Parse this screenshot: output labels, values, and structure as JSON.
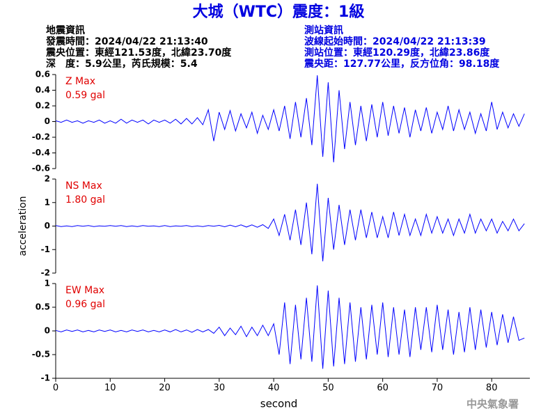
{
  "header": {
    "title": "大城（WTC）震度：1級",
    "quake_info": [
      "地震資訊",
      "發震時間：2024/04/22 21:13:40",
      "震央位置：東經121.53度，北緯23.70度",
      "深　度：5.9公里，芮氏規模：5.4"
    ],
    "station_info": [
      "測站資訊",
      "波線起始時間：2024/04/22 21:13:39",
      "測站位置：東經120.29度，北緯23.86度",
      "震央距：127.77公里，反方位角：98.18度"
    ],
    "footer": "中央氣象署"
  },
  "chart_data": [
    {
      "type": "line",
      "annotations": [
        "Z Max",
        "0.59 gal"
      ],
      "color": "#0000ff",
      "xlim": [
        0,
        87
      ],
      "ylim": [
        -0.6,
        0.6
      ],
      "yticks": [
        0.6,
        0.4,
        0.2,
        0,
        -0.2,
        -0.4,
        -0.6
      ],
      "x": [
        0,
        1,
        2,
        3,
        4,
        5,
        6,
        7,
        8,
        9,
        10,
        11,
        12,
        13,
        14,
        15,
        16,
        17,
        18,
        19,
        20,
        21,
        22,
        23,
        24,
        25,
        26,
        27,
        28,
        29,
        30,
        31,
        32,
        33,
        34,
        35,
        36,
        37,
        38,
        39,
        40,
        41,
        42,
        43,
        44,
        45,
        46,
        47,
        48,
        49,
        50,
        51,
        52,
        53,
        54,
        55,
        56,
        57,
        58,
        59,
        60,
        61,
        62,
        63,
        64,
        65,
        66,
        67,
        68,
        69,
        70,
        71,
        72,
        73,
        74,
        75,
        76,
        77,
        78,
        79,
        80,
        81,
        82,
        83,
        84,
        85,
        86
      ],
      "values": [
        0.01,
        -0.01,
        0.02,
        -0.01,
        0.01,
        -0.02,
        0.01,
        -0.01,
        0.02,
        -0.02,
        0.01,
        -0.02,
        0.03,
        -0.02,
        0.02,
        -0.01,
        0.02,
        -0.03,
        0.02,
        -0.01,
        0.02,
        -0.02,
        0.03,
        -0.03,
        0.04,
        -0.03,
        0.05,
        -0.04,
        0.15,
        -0.25,
        0.12,
        -0.1,
        0.14,
        -0.12,
        0.1,
        -0.08,
        0.12,
        -0.15,
        0.08,
        -0.1,
        0.15,
        -0.12,
        0.2,
        -0.22,
        0.25,
        -0.2,
        0.3,
        -0.3,
        0.59,
        -0.45,
        0.5,
        -0.52,
        0.4,
        -0.35,
        0.25,
        -0.3,
        0.2,
        -0.25,
        0.22,
        -0.2,
        0.25,
        -0.18,
        0.2,
        -0.15,
        0.18,
        -0.2,
        0.15,
        -0.12,
        0.18,
        -0.15,
        0.12,
        -0.1,
        0.2,
        -0.12,
        0.15,
        -0.1,
        0.12,
        -0.15,
        0.1,
        -0.12,
        0.25,
        -0.1,
        0.12,
        -0.08,
        0.1,
        -0.06,
        0.1
      ]
    },
    {
      "type": "line",
      "annotations": [
        "NS Max",
        "1.80 gal"
      ],
      "ylabel": "acceleration",
      "color": "#0000ff",
      "xlim": [
        0,
        87
      ],
      "ylim": [
        -2,
        2
      ],
      "yticks": [
        2,
        1,
        0,
        -1,
        -2
      ],
      "x": [
        0,
        1,
        2,
        3,
        4,
        5,
        6,
        7,
        8,
        9,
        10,
        11,
        12,
        13,
        14,
        15,
        16,
        17,
        18,
        19,
        20,
        21,
        22,
        23,
        24,
        25,
        26,
        27,
        28,
        29,
        30,
        31,
        32,
        33,
        34,
        35,
        36,
        37,
        38,
        39,
        40,
        41,
        42,
        43,
        44,
        45,
        46,
        47,
        48,
        49,
        50,
        51,
        52,
        53,
        54,
        55,
        56,
        57,
        58,
        59,
        60,
        61,
        62,
        63,
        64,
        65,
        66,
        67,
        68,
        69,
        70,
        71,
        72,
        73,
        74,
        75,
        76,
        77,
        78,
        79,
        80,
        81,
        82,
        83,
        84,
        85,
        86
      ],
      "values": [
        0.02,
        -0.02,
        0.01,
        -0.02,
        0.02,
        -0.01,
        0.02,
        -0.02,
        0.01,
        -0.01,
        0.02,
        -0.01,
        0.02,
        -0.02,
        0.01,
        -0.02,
        0.02,
        -0.01,
        0.01,
        -0.02,
        0.02,
        -0.02,
        0.01,
        -0.01,
        0.02,
        -0.02,
        0.01,
        -0.02,
        0.02,
        -0.01,
        0.03,
        -0.03,
        0.04,
        -0.03,
        0.05,
        -0.04,
        0.05,
        -0.05,
        0.06,
        -0.1,
        0.3,
        -0.4,
        0.5,
        -0.6,
        0.7,
        -0.8,
        1.0,
        -1.2,
        1.8,
        -1.5,
        1.2,
        -1.0,
        0.9,
        -0.8,
        0.7,
        -0.6,
        0.7,
        -0.5,
        0.6,
        -0.5,
        0.4,
        -0.5,
        0.6,
        -0.4,
        0.5,
        -0.4,
        0.3,
        -0.4,
        0.5,
        -0.3,
        0.4,
        -0.3,
        0.3,
        -0.4,
        0.3,
        -0.3,
        0.5,
        -0.3,
        0.3,
        -0.2,
        0.3,
        -0.3,
        0.2,
        -0.2,
        0.3,
        -0.2,
        0.1
      ]
    },
    {
      "type": "line",
      "annotations": [
        "EW Max",
        "0.96 gal"
      ],
      "xlabel": "second",
      "color": "#0000ff",
      "xlim": [
        0,
        87
      ],
      "ylim": [
        -1,
        1
      ],
      "yticks": [
        1,
        0.5,
        0,
        -0.5,
        -1
      ],
      "xticks": [
        0,
        10,
        20,
        30,
        40,
        50,
        60,
        70,
        80
      ],
      "x": [
        0,
        1,
        2,
        3,
        4,
        5,
        6,
        7,
        8,
        9,
        10,
        11,
        12,
        13,
        14,
        15,
        16,
        17,
        18,
        19,
        20,
        21,
        22,
        23,
        24,
        25,
        26,
        27,
        28,
        29,
        30,
        31,
        32,
        33,
        34,
        35,
        36,
        37,
        38,
        39,
        40,
        41,
        42,
        43,
        44,
        45,
        46,
        47,
        48,
        49,
        50,
        51,
        52,
        53,
        54,
        55,
        56,
        57,
        58,
        59,
        60,
        61,
        62,
        63,
        64,
        65,
        66,
        67,
        68,
        69,
        70,
        71,
        72,
        73,
        74,
        75,
        76,
        77,
        78,
        79,
        80,
        81,
        82,
        83,
        84,
        85,
        86
      ],
      "values": [
        0.01,
        -0.02,
        0.02,
        -0.01,
        0.02,
        -0.02,
        0.01,
        -0.02,
        0.02,
        -0.01,
        0.02,
        -0.02,
        0.01,
        -0.02,
        0.02,
        -0.01,
        0.02,
        -0.02,
        0.01,
        -0.02,
        0.02,
        -0.02,
        0.03,
        -0.02,
        0.02,
        -0.03,
        0.03,
        -0.02,
        0.03,
        -0.05,
        0.08,
        -0.1,
        0.06,
        -0.08,
        0.1,
        -0.12,
        0.08,
        -0.1,
        0.12,
        -0.1,
        0.15,
        -0.5,
        0.6,
        -0.7,
        0.55,
        -0.6,
        0.7,
        -0.65,
        0.96,
        -0.8,
        0.85,
        -0.75,
        0.7,
        -0.7,
        0.6,
        -0.65,
        0.5,
        -0.6,
        0.55,
        -0.5,
        0.6,
        -0.55,
        0.5,
        -0.5,
        0.45,
        -0.55,
        0.5,
        -0.4,
        0.5,
        -0.45,
        0.55,
        -0.4,
        0.45,
        -0.5,
        0.4,
        -0.45,
        0.5,
        -0.4,
        0.45,
        -0.35,
        0.4,
        -0.3,
        0.35,
        -0.25,
        0.3,
        -0.2,
        -0.15
      ]
    }
  ]
}
